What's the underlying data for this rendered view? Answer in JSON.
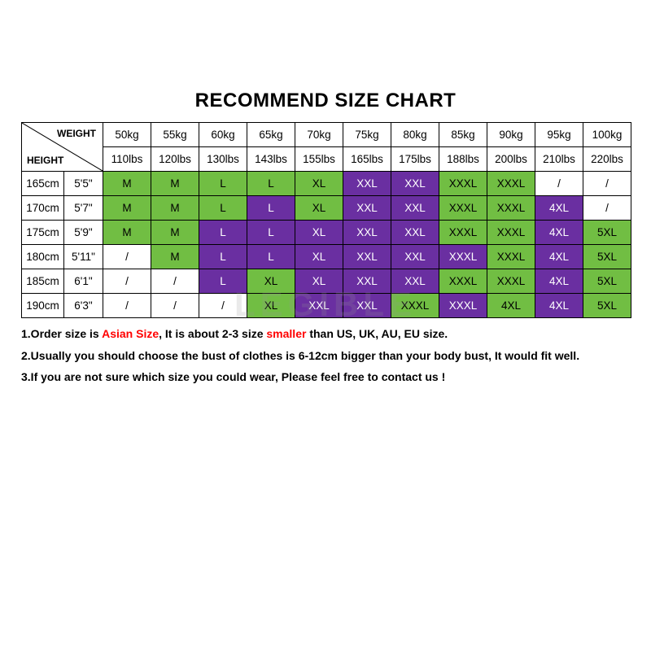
{
  "title": "RECOMMEND SIZE CHART",
  "watermark": "LEGIBLE",
  "corner": {
    "weight_label": "WEIGHT",
    "height_label": "HEIGHT"
  },
  "colors": {
    "green": "#71be43",
    "purple": "#6a2fa1",
    "plain": "#ffffff",
    "border": "#000000",
    "red": "#ff0000",
    "title_fontsize": 24,
    "cell_fontsize": 13.5,
    "note_fontsize": 14
  },
  "weights_kg": [
    "50kg",
    "55kg",
    "60kg",
    "65kg",
    "70kg",
    "75kg",
    "80kg",
    "85kg",
    "90kg",
    "95kg",
    "100kg"
  ],
  "weights_lbs": [
    "110lbs",
    "120lbs",
    "130lbs",
    "143lbs",
    "155lbs",
    "165lbs",
    "175lbs",
    "188lbs",
    "200lbs",
    "210lbs",
    "220lbs"
  ],
  "heights": [
    {
      "cm": "165cm",
      "ft": "5'5\""
    },
    {
      "cm": "170cm",
      "ft": "5'7\""
    },
    {
      "cm": "175cm",
      "ft": "5'9\""
    },
    {
      "cm": "180cm",
      "ft": "5'11\""
    },
    {
      "cm": "185cm",
      "ft": "6'1\""
    },
    {
      "cm": "190cm",
      "ft": "6'3\""
    }
  ],
  "cell_color_legend": {
    "green": "c-green",
    "purple": "c-purple",
    "plain": "c-plain"
  },
  "grid": [
    [
      [
        "M",
        "green"
      ],
      [
        "M",
        "green"
      ],
      [
        "L",
        "green"
      ],
      [
        "L",
        "green"
      ],
      [
        "XL",
        "green"
      ],
      [
        "XXL",
        "purple"
      ],
      [
        "XXL",
        "purple"
      ],
      [
        "XXXL",
        "green"
      ],
      [
        "XXXL",
        "green"
      ],
      [
        "/",
        "plain"
      ],
      [
        "/",
        "plain"
      ]
    ],
    [
      [
        "M",
        "green"
      ],
      [
        "M",
        "green"
      ],
      [
        "L",
        "green"
      ],
      [
        "L",
        "purple"
      ],
      [
        "XL",
        "green"
      ],
      [
        "XXL",
        "purple"
      ],
      [
        "XXL",
        "purple"
      ],
      [
        "XXXL",
        "green"
      ],
      [
        "XXXL",
        "green"
      ],
      [
        "4XL",
        "purple"
      ],
      [
        "/",
        "plain"
      ]
    ],
    [
      [
        "M",
        "green"
      ],
      [
        "M",
        "green"
      ],
      [
        "L",
        "purple"
      ],
      [
        "L",
        "purple"
      ],
      [
        "XL",
        "purple"
      ],
      [
        "XXL",
        "purple"
      ],
      [
        "XXL",
        "purple"
      ],
      [
        "XXXL",
        "green"
      ],
      [
        "XXXL",
        "green"
      ],
      [
        "4XL",
        "purple"
      ],
      [
        "5XL",
        "green"
      ]
    ],
    [
      [
        "/",
        "plain"
      ],
      [
        "M",
        "green"
      ],
      [
        "L",
        "purple"
      ],
      [
        "L",
        "purple"
      ],
      [
        "XL",
        "purple"
      ],
      [
        "XXL",
        "purple"
      ],
      [
        "XXL",
        "purple"
      ],
      [
        "XXXL",
        "purple"
      ],
      [
        "XXXL",
        "green"
      ],
      [
        "4XL",
        "purple"
      ],
      [
        "5XL",
        "green"
      ]
    ],
    [
      [
        "/",
        "plain"
      ],
      [
        "/",
        "plain"
      ],
      [
        "L",
        "purple"
      ],
      [
        "XL",
        "green"
      ],
      [
        "XL",
        "purple"
      ],
      [
        "XXL",
        "purple"
      ],
      [
        "XXL",
        "purple"
      ],
      [
        "XXXL",
        "green"
      ],
      [
        "XXXL",
        "green"
      ],
      [
        "4XL",
        "purple"
      ],
      [
        "5XL",
        "green"
      ]
    ],
    [
      [
        "/",
        "plain"
      ],
      [
        "/",
        "plain"
      ],
      [
        "/",
        "plain"
      ],
      [
        "XL",
        "green"
      ],
      [
        "XXL",
        "purple"
      ],
      [
        "XXL",
        "purple"
      ],
      [
        "XXXL",
        "green"
      ],
      [
        "XXXL",
        "purple"
      ],
      [
        "4XL",
        "green"
      ],
      [
        "4XL",
        "purple"
      ],
      [
        "5XL",
        "green"
      ]
    ]
  ],
  "notes": [
    {
      "parts": [
        {
          "t": "1.Order size is "
        },
        {
          "t": "Asian Size",
          "red": true
        },
        {
          "t": ", It is about 2-3 size "
        },
        {
          "t": "smaller",
          "red": true
        },
        {
          "t": " than US, UK, AU, EU size."
        }
      ]
    },
    {
      "parts": [
        {
          "t": "2.Usually you should choose the bust of clothes is 6-12cm bigger than your body bust, It would fit well."
        }
      ]
    },
    {
      "parts": [
        {
          "t": "3.If you are not sure which size you could wear, Please feel free to contact us !"
        }
      ]
    }
  ]
}
